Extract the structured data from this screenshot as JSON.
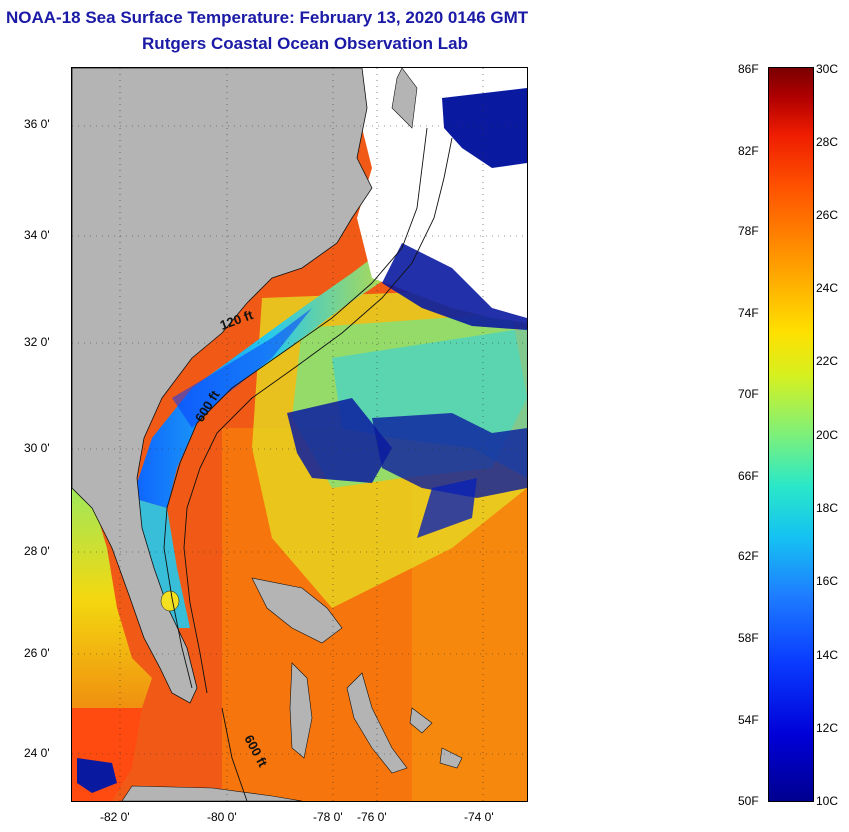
{
  "title": {
    "line1": "NOAA-18 Sea Surface Temperature:  February 13, 2020 0146 GMT",
    "line2": "Rutgers Coastal Ocean Observation Lab"
  },
  "map": {
    "latitude_labels": [
      "36 0'",
      "34 0'",
      "32 0'",
      "30 0'",
      "28 0'",
      "26 0'",
      "24 0'"
    ],
    "longitude_labels": [
      "-82 0'",
      "-80 0'",
      "-78 0'",
      "-76 0'",
      "-74 0'"
    ],
    "contour_labels": [
      "120 ft",
      "600 ft",
      "600 ft"
    ],
    "colors": {
      "land": "#b4b4b4",
      "no_data": "#ffffff",
      "warm_water": "#e4491a",
      "cold_water": "#0a1aa0"
    }
  },
  "colorbar": {
    "fahrenheit_labels": [
      "86F",
      "82F",
      "78F",
      "74F",
      "70F",
      "66F",
      "62F",
      "58F",
      "54F",
      "50F"
    ],
    "celsius_labels": [
      "30C",
      "28C",
      "26C",
      "24C",
      "22C",
      "20C",
      "18C",
      "16C",
      "14C",
      "12C",
      "10C"
    ],
    "min_f": 50,
    "max_f": 86,
    "min_c": 10,
    "max_c": 30
  }
}
